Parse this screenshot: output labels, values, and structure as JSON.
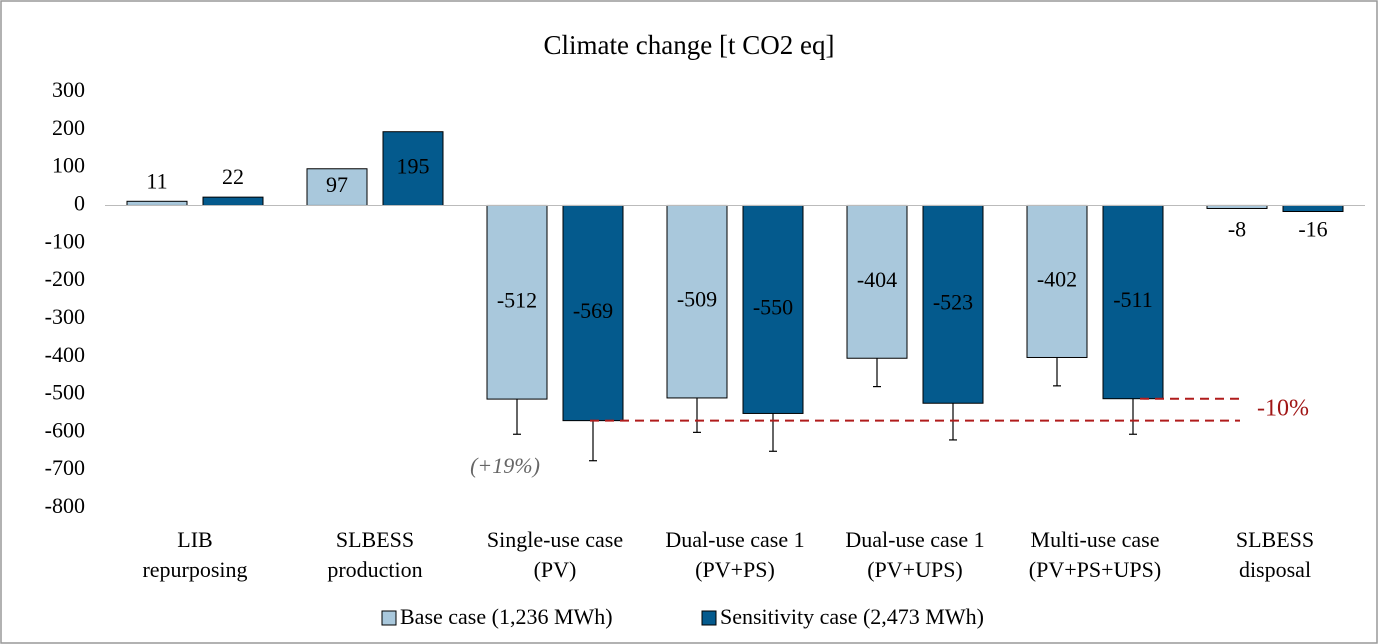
{
  "chart_data": {
    "type": "bar",
    "title": "Climate change [t CO2 eq]",
    "categories": [
      [
        "LIB",
        "repurposing"
      ],
      [
        "SLBESS",
        "production"
      ],
      [
        "Single-use case",
        "(PV)"
      ],
      [
        "Dual-use case 1",
        "(PV+PS)"
      ],
      [
        "Dual-use case 1",
        "(PV+UPS)"
      ],
      [
        "Multi-use case",
        "(PV+PS+UPS)"
      ],
      [
        "SLBESS",
        "disposal"
      ]
    ],
    "series": [
      {
        "name": "Base case (1,236 MWh)",
        "color": "#a9c8dc",
        "values": [
          11,
          97,
          -512,
          -509,
          -404,
          -402,
          -8
        ],
        "errors": [
          null,
          null,
          93,
          91,
          75,
          75,
          null
        ]
      },
      {
        "name": "Sensitivity case (2,473 MWh)",
        "color": "#045a8d",
        "values": [
          22,
          195,
          -569,
          -550,
          -523,
          -511,
          -16
        ],
        "errors": [
          null,
          null,
          106,
          100,
          97,
          94,
          null
        ]
      }
    ],
    "ylim": [
      -800,
      300
    ],
    "yticks": [
      -800,
      -700,
      -600,
      -500,
      -400,
      -300,
      -200,
      -100,
      0,
      100,
      200,
      300
    ],
    "annotations": [
      "(+19%)",
      "-10%"
    ]
  }
}
